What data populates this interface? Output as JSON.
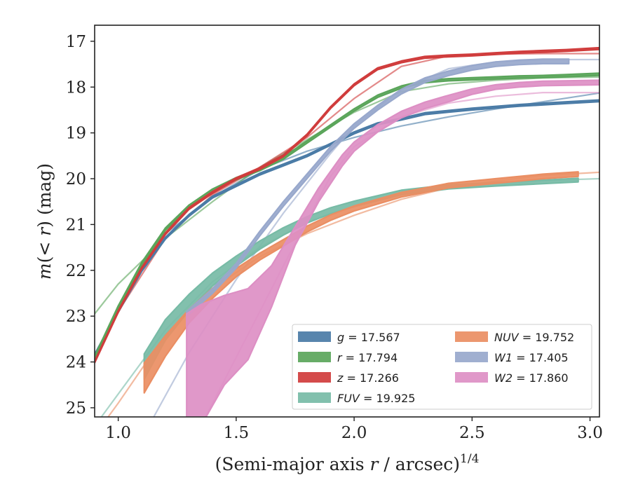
{
  "chart_data": {
    "type": "line",
    "xlabel": "(Semi-major axis r / arcsec)1/4",
    "xlabel_parts": {
      "prefix": "(Semi-major axis ",
      "var": "r",
      "mid": " / arcsec)",
      "sup": "1/4"
    },
    "ylabel": "m(< r) (mag)",
    "ylabel_parts": {
      "m": "m",
      "open": "(",
      "lt": "< ",
      "r": "r",
      "close": ")",
      "unit": " (mag)"
    },
    "xlim": [
      0.9,
      3.04
    ],
    "ylim": [
      25.2,
      16.65
    ],
    "y_inverted": true,
    "xticks": [
      1.0,
      1.5,
      2.0,
      2.5,
      3.0
    ],
    "xtick_labels": [
      "1.0",
      "1.5",
      "2.0",
      "2.5",
      "3.0"
    ],
    "yticks": [
      17,
      18,
      19,
      20,
      21,
      22,
      23,
      24,
      25
    ],
    "ytick_labels": [
      "17",
      "18",
      "19",
      "20",
      "21",
      "22",
      "23",
      "24",
      "25"
    ],
    "grid": false,
    "legend_position": "lower-right",
    "legend_columns": 2,
    "series": [
      {
        "name": "g = 17.567",
        "band": "g",
        "value": "17.567",
        "color": "#4a7ba6",
        "x": [
          0.9,
          1.0,
          1.1,
          1.2,
          1.3,
          1.4,
          1.5,
          1.6,
          1.7,
          1.8,
          1.9,
          2.0,
          2.1,
          2.2,
          2.3,
          2.4,
          2.5,
          2.6,
          2.7,
          2.8,
          2.9,
          3.04
        ],
        "y": [
          23.85,
          22.9,
          22.0,
          21.3,
          20.8,
          20.4,
          20.15,
          19.9,
          19.7,
          19.5,
          19.25,
          19.0,
          18.8,
          18.7,
          18.58,
          18.53,
          18.48,
          18.44,
          18.4,
          18.37,
          18.34,
          18.3
        ],
        "band_width": 0.04,
        "model_x": [
          0.9,
          1.0,
          1.2,
          1.4,
          1.6,
          1.8,
          2.0,
          2.2,
          2.4,
          2.6,
          2.8,
          3.04
        ],
        "model_y": [
          23.9,
          22.8,
          21.2,
          20.4,
          19.8,
          19.4,
          19.1,
          18.85,
          18.65,
          18.48,
          18.32,
          18.13
        ]
      },
      {
        "name": "r = 17.794",
        "band": "r",
        "value": "17.794",
        "color": "#5aa55a",
        "x": [
          0.9,
          1.0,
          1.1,
          1.2,
          1.3,
          1.4,
          1.5,
          1.6,
          1.7,
          1.8,
          1.9,
          2.0,
          2.1,
          2.2,
          2.3,
          2.4,
          2.5,
          2.6,
          2.7,
          2.8,
          2.9,
          3.04
        ],
        "y": [
          23.9,
          22.8,
          21.85,
          21.1,
          20.6,
          20.25,
          20.0,
          19.8,
          19.55,
          19.2,
          18.85,
          18.5,
          18.2,
          18.0,
          17.88,
          17.84,
          17.82,
          17.8,
          17.78,
          17.77,
          17.75,
          17.72
        ],
        "band_width": 0.05,
        "model_x": [
          0.9,
          1.0,
          1.2,
          1.4,
          1.6,
          1.8,
          2.0,
          2.2,
          2.4,
          2.6,
          2.8,
          3.04
        ],
        "model_y": [
          22.95,
          22.3,
          21.3,
          20.5,
          19.75,
          19.15,
          18.55,
          18.1,
          17.93,
          17.85,
          17.8,
          17.78
        ]
      },
      {
        "name": "z = 17.266",
        "band": "z",
        "value": "17.266",
        "color": "#d03c3c",
        "x": [
          0.9,
          1.0,
          1.1,
          1.2,
          1.3,
          1.4,
          1.5,
          1.6,
          1.7,
          1.8,
          1.9,
          2.0,
          2.1,
          2.2,
          2.3,
          2.4,
          2.5,
          2.6,
          2.7,
          2.8,
          2.9,
          3.04
        ],
        "y": [
          24.0,
          22.9,
          21.95,
          21.2,
          20.65,
          20.3,
          20.0,
          19.78,
          19.5,
          19.05,
          18.45,
          17.95,
          17.6,
          17.45,
          17.35,
          17.32,
          17.3,
          17.27,
          17.24,
          17.22,
          17.2,
          17.16
        ],
        "band_width": 0.04,
        "model_x": [
          0.9,
          1.0,
          1.2,
          1.4,
          1.6,
          1.8,
          2.0,
          2.2,
          2.4,
          2.6,
          2.8,
          3.04
        ],
        "model_y": [
          23.9,
          22.9,
          21.3,
          20.35,
          19.75,
          19.1,
          18.25,
          17.55,
          17.32,
          17.28,
          17.27,
          17.27
        ]
      },
      {
        "name": "FUV = 19.925",
        "band": "FUV",
        "value": "19.925",
        "color": "#77bba6",
        "x": [
          1.11,
          1.2,
          1.3,
          1.4,
          1.5,
          1.6,
          1.7,
          1.8,
          1.9,
          2.0,
          2.2,
          2.4,
          2.6,
          2.8,
          2.95
        ],
        "y": [
          24.1,
          23.3,
          22.7,
          22.2,
          21.8,
          21.45,
          21.15,
          20.9,
          20.7,
          20.55,
          20.3,
          20.18,
          20.12,
          20.07,
          20.03
        ],
        "band_width": [
          0.55,
          0.45,
          0.35,
          0.28,
          0.22,
          0.18,
          0.16,
          0.14,
          0.13,
          0.12,
          0.1,
          0.09,
          0.08,
          0.08,
          0.08
        ],
        "model_x": [
          0.9,
          1.0,
          1.2,
          1.4,
          1.6,
          1.8,
          2.0,
          2.2,
          2.4,
          2.6,
          2.8,
          3.04
        ],
        "model_y": [
          25.4,
          24.7,
          23.3,
          22.25,
          21.5,
          20.95,
          20.6,
          20.35,
          20.2,
          20.1,
          20.04,
          20.0
        ]
      },
      {
        "name": "NUV = 19.752",
        "band": "NUV",
        "value": "19.752",
        "color": "#ea8e63",
        "x": [
          1.11,
          1.2,
          1.3,
          1.4,
          1.5,
          1.6,
          1.7,
          1.8,
          1.9,
          2.0,
          2.2,
          2.4,
          2.6,
          2.8,
          2.95
        ],
        "y": [
          24.35,
          23.65,
          23.0,
          22.5,
          22.05,
          21.7,
          21.4,
          21.1,
          20.85,
          20.65,
          20.35,
          20.15,
          20.05,
          19.95,
          19.9
        ],
        "band_width": [
          0.65,
          0.45,
          0.3,
          0.22,
          0.18,
          0.15,
          0.14,
          0.13,
          0.12,
          0.11,
          0.1,
          0.1,
          0.1,
          0.1,
          0.1
        ],
        "model_x": [
          0.9,
          1.0,
          1.2,
          1.4,
          1.6,
          1.8,
          2.0,
          2.2,
          2.4,
          2.6,
          2.8,
          3.04
        ],
        "model_y": [
          25.6,
          24.9,
          23.4,
          22.4,
          21.7,
          21.2,
          20.8,
          20.45,
          20.2,
          20.05,
          19.93,
          19.86
        ]
      },
      {
        "name": "W1 = 17.405",
        "band": "W1",
        "value": "17.405",
        "color": "#98a8cc",
        "x": [
          1.29,
          1.4,
          1.5,
          1.6,
          1.7,
          1.8,
          1.9,
          2.0,
          2.1,
          2.2,
          2.3,
          2.4,
          2.5,
          2.6,
          2.7,
          2.8,
          2.91
        ],
        "y": [
          22.95,
          22.45,
          21.9,
          21.2,
          20.55,
          19.95,
          19.35,
          18.85,
          18.45,
          18.1,
          17.85,
          17.7,
          17.58,
          17.5,
          17.46,
          17.44,
          17.44
        ],
        "band_width": 0.1,
        "model_x": [
          1.14,
          1.3,
          1.5,
          1.7,
          1.9,
          2.0,
          2.2,
          2.4,
          2.6,
          2.8,
          3.04
        ],
        "model_y": [
          25.3,
          23.8,
          22.2,
          20.75,
          19.45,
          18.85,
          18.05,
          17.6,
          17.45,
          17.4,
          17.4
        ]
      },
      {
        "name": "W2 = 17.860",
        "band": "W2",
        "value": "17.860",
        "color": "#dd8fc4",
        "x": [
          1.29,
          1.35,
          1.45,
          1.55,
          1.65,
          1.75,
          1.85,
          1.95,
          2.0,
          2.1,
          2.2,
          2.3,
          2.4,
          2.5,
          2.6,
          2.7,
          2.8,
          3.04
        ],
        "y": [
          24.15,
          23.9,
          23.5,
          23.15,
          22.3,
          21.25,
          20.35,
          19.6,
          19.3,
          18.9,
          18.6,
          18.4,
          18.25,
          18.1,
          18.0,
          17.95,
          17.92,
          17.9
        ],
        "lower": [
          22.95,
          22.75,
          22.55,
          22.4,
          21.9,
          21.05,
          20.2,
          19.48,
          19.2,
          18.82,
          18.53,
          18.33,
          18.18,
          18.04,
          17.95,
          17.9,
          17.87,
          17.85
        ],
        "upper": [
          25.4,
          25.4,
          24.5,
          23.95,
          22.8,
          21.45,
          20.5,
          19.72,
          19.4,
          18.98,
          18.67,
          18.47,
          18.32,
          18.16,
          18.05,
          18.0,
          17.97,
          17.95
        ],
        "model_x": [
          1.36,
          1.5,
          1.7,
          1.9,
          2.0,
          2.2,
          2.4,
          2.6,
          2.8,
          3.04
        ],
        "model_y": [
          25.3,
          23.9,
          21.9,
          19.95,
          19.3,
          18.65,
          18.35,
          18.2,
          18.12,
          18.12
        ]
      }
    ]
  }
}
